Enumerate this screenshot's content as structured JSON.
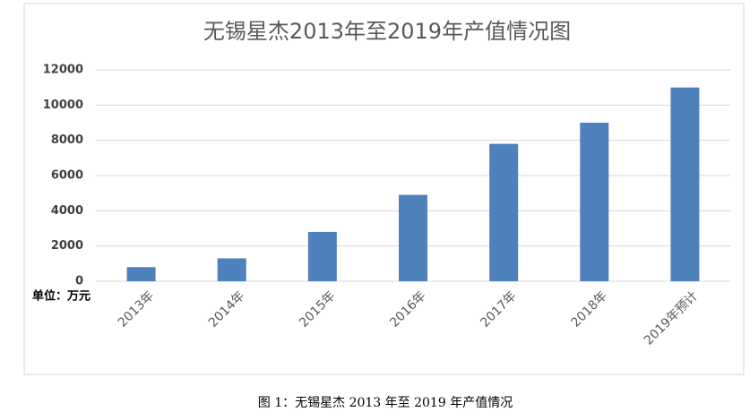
{
  "chart_data": {
    "type": "bar",
    "title": "无锡星杰2013年至2019年产值情况图",
    "categories": [
      "2013年",
      "2014年",
      "2015年",
      "2016年",
      "2017年",
      "2018年",
      "2019年预计"
    ],
    "values": [
      800,
      1300,
      2800,
      4900,
      7800,
      9000,
      11000
    ],
    "color": "#4f81bd",
    "ylim": [
      0,
      12000
    ],
    "yticks": [
      0,
      2000,
      4000,
      6000,
      8000,
      10000,
      12000
    ],
    "grid": true,
    "unit_label": "单位：万元"
  },
  "caption": "图 1：无锡星杰 2013 年至 2019 年产值情况"
}
